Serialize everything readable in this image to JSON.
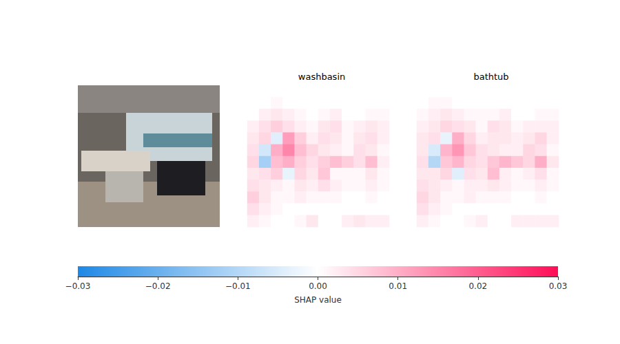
{
  "chart_data": {
    "type": "heatmap",
    "tick_labels": false,
    "panels": [
      {
        "title": "washbasin",
        "cells": [
          [
            0,
            0,
            0,
            0,
            0,
            0,
            0,
            0,
            0,
            0,
            0,
            0
          ],
          [
            0,
            0,
            0.001,
            0,
            0,
            0,
            0,
            0,
            0,
            0,
            0,
            0
          ],
          [
            0,
            0.002,
            0.003,
            0.002,
            0.001,
            0,
            0.001,
            0.002,
            0,
            0,
            0.001,
            0.001
          ],
          [
            0.002,
            0.004,
            0.006,
            0.004,
            0.002,
            0.001,
            0.003,
            0.004,
            0.001,
            0.002,
            0.003,
            0.002
          ],
          [
            0.003,
            0.005,
            -0.004,
            0.012,
            0.006,
            0.002,
            0.004,
            0.003,
            0.001,
            0.003,
            0.004,
            0.002
          ],
          [
            0.004,
            -0.006,
            0.01,
            0.015,
            0.008,
            0.005,
            0.003,
            0.002,
            0.001,
            0.004,
            0.003,
            0.001
          ],
          [
            0.005,
            -0.012,
            0.008,
            0.01,
            0.006,
            0.004,
            0.006,
            0.008,
            0.006,
            0.004,
            0.008,
            0.002
          ],
          [
            0.003,
            0.004,
            0.006,
            -0.003,
            0.005,
            0.003,
            0.007,
            0.001,
            0.001,
            0.001,
            0.003,
            0.001
          ],
          [
            0.004,
            0.003,
            0.002,
            0.001,
            0.003,
            0.002,
            0.004,
            0.002,
            0.001,
            0.001,
            0.002,
            0.001
          ],
          [
            0.006,
            0.003,
            0.001,
            0.001,
            0.002,
            0.001,
            0.001,
            0.001,
            0,
            0,
            0.001,
            0
          ],
          [
            0.004,
            0.002,
            0.001,
            0,
            0,
            0,
            0,
            0,
            0,
            0,
            0,
            0
          ],
          [
            0.002,
            0.001,
            0,
            0,
            0.001,
            0.003,
            0,
            0,
            0.002,
            0.003,
            0.002,
            0.002
          ]
        ]
      },
      {
        "title": "bathtub",
        "cells": [
          [
            0,
            0,
            0,
            0,
            0,
            0,
            0,
            0,
            0,
            0,
            0,
            0
          ],
          [
            0,
            0.001,
            0.001,
            0,
            0,
            0,
            0,
            0,
            0,
            0,
            0,
            0
          ],
          [
            0.001,
            0.002,
            0.003,
            0.002,
            0.001,
            0.001,
            0.001,
            0.002,
            0,
            0,
            0.001,
            0.001
          ],
          [
            0.002,
            0.003,
            0.005,
            0.004,
            0.003,
            0.001,
            0.004,
            0.003,
            0.001,
            0.002,
            0.002,
            0.002
          ],
          [
            0.003,
            0.004,
            -0.003,
            0.01,
            0.005,
            0.002,
            0.003,
            0.003,
            0.002,
            0.003,
            0.005,
            0.002
          ],
          [
            0.003,
            -0.005,
            0.009,
            0.013,
            0.007,
            0.004,
            0.003,
            0.002,
            0.002,
            0.005,
            0.004,
            0.001
          ],
          [
            0.004,
            -0.01,
            0.007,
            0.009,
            0.005,
            0.004,
            0.007,
            0.009,
            0.007,
            0.005,
            0.01,
            0.003
          ],
          [
            0.003,
            0.003,
            0.005,
            -0.004,
            0.004,
            0.003,
            0.008,
            0.002,
            0.001,
            0.002,
            0.004,
            0.001
          ],
          [
            0.004,
            0.003,
            0.002,
            0.001,
            0.002,
            0.002,
            0.003,
            0.002,
            0.001,
            0.001,
            0.002,
            0.001
          ],
          [
            0.005,
            0.003,
            0.001,
            0.001,
            0.002,
            0.001,
            0.001,
            0.001,
            0,
            0,
            0.001,
            0
          ],
          [
            0.004,
            0.002,
            0.001,
            0,
            0,
            0,
            0,
            0,
            0,
            0,
            0,
            0
          ],
          [
            0.002,
            0.001,
            0,
            0,
            0.001,
            0.002,
            0,
            0,
            0.002,
            0.002,
            0.002,
            0.002
          ]
        ]
      }
    ],
    "colorbar": {
      "range": [
        -0.03,
        0.03
      ],
      "ticks": [
        {
          "value": -0.03,
          "label": "−0.03"
        },
        {
          "value": -0.02,
          "label": "−0.02"
        },
        {
          "value": -0.01,
          "label": "−0.01"
        },
        {
          "value": 0,
          "label": "0.00"
        },
        0.01,
        0.02,
        0.03
      ],
      "label": "SHAP value"
    }
  }
}
